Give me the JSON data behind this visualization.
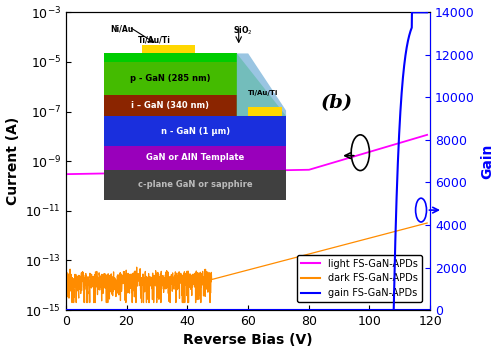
{
  "title_label": "(b)",
  "xlabel": "Reverse Bias (V)",
  "ylabel_left": "Current (A)",
  "ylabel_right": "Gain",
  "xlim": [
    0,
    120
  ],
  "ylim_log_min": -15,
  "ylim_log_max": -3,
  "ylim_gain": [
    0,
    14000
  ],
  "xticks": [
    0,
    20,
    40,
    60,
    80,
    100,
    120
  ],
  "yticks_gain": [
    0,
    2000,
    4000,
    6000,
    8000,
    10000,
    12000,
    14000
  ],
  "light_color": "#FF00FF",
  "dark_color": "#FF8C00",
  "gain_color": "#0000FF",
  "legend_labels": [
    "light FS-GaN-APDs",
    "dark FS-GaN-APDs",
    "gain FS-GaN-APDs"
  ],
  "bg_color": "#FFFFFF",
  "layer_colors": [
    "#404040",
    "#9900AA",
    "#1A2FCC",
    "#8B3000",
    "#44BB00"
  ],
  "layer_labels": [
    "c-plane GaN or sapphire",
    "GaN or AlN Template",
    "n - GaN (1 μm)",
    "i – GaN (340 nm)",
    "p - GaN (285 nm)"
  ],
  "layer_text_colors": [
    "#CCCCCC",
    "#FFFFFF",
    "#FFFFFF",
    "#FFFFFF",
    "#000000"
  ],
  "green_surround": "#00CC00",
  "gold_contact": "#FFD700",
  "sio2_color": "#88BBDD"
}
